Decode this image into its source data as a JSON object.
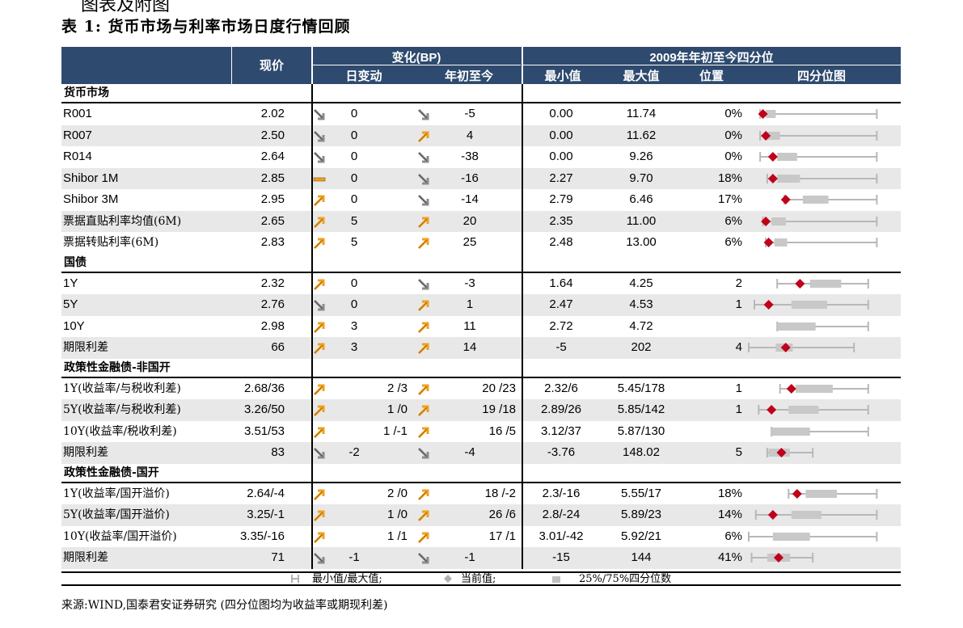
{
  "page": {
    "top_fragment": "图表及附图",
    "title": "表 1:  货币市场与利率市场日度行情回顾",
    "source": "来源:WIND,国泰君安证券研究      (四分位图均为收益率或期现利差)"
  },
  "header": {
    "price": "现价",
    "change_group": "变化(BP)",
    "change_day": "日变动",
    "change_ytd": "年初至今",
    "quartile_group": "2009年年初至今四分位",
    "min": "最小值",
    "max": "最大值",
    "position": "位置",
    "quartile_chart": "四分位图"
  },
  "colors": {
    "header_bg": "#2e4a6e",
    "row_alt": "#e8e8e8",
    "marker": "#c0001a",
    "box": "#c8c8c8",
    "whisker": "#b0b0b0",
    "arrow_up": "#f0a020",
    "arrow_down": "#8c8c8c",
    "arrow_flat": "#f0a020"
  },
  "sections": [
    {
      "title": "货币市场",
      "rows": [
        {
          "label": "R001",
          "price": "2.02",
          "dir1": "down",
          "d1": "0",
          "dir2": "down",
          "d2": "-5",
          "min": "0.00",
          "max": "11.74",
          "pos": "0%",
          "bp": {
            "wl": 0.08,
            "q1": 0.12,
            "q3": 0.19,
            "wh": 0.9,
            "cur": 0.1
          }
        },
        {
          "label": "R007",
          "price": "2.50",
          "dir1": "down",
          "d1": "0",
          "dir2": "up",
          "d2": "4",
          "min": "0.00",
          "max": "11.62",
          "pos": "0%",
          "bp": {
            "wl": 0.08,
            "q1": 0.13,
            "q3": 0.22,
            "wh": 0.9,
            "cur": 0.12
          }
        },
        {
          "label": "R014",
          "price": "2.64",
          "dir1": "down",
          "d1": "0",
          "dir2": "down",
          "d2": "-38",
          "min": "0.00",
          "max": "9.26",
          "pos": "0%",
          "bp": {
            "wl": 0.08,
            "q1": 0.2,
            "q3": 0.34,
            "wh": 0.9,
            "cur": 0.17
          }
        },
        {
          "label": "Shibor 1M",
          "price": "2.85",
          "dir1": "flat",
          "d1": "0",
          "dir2": "down",
          "d2": "-16",
          "min": "2.27",
          "max": "9.70",
          "pos": "18%",
          "bp": {
            "wl": 0.13,
            "q1": 0.2,
            "q3": 0.36,
            "wh": 0.9,
            "cur": 0.17
          }
        },
        {
          "label": "Shibor 3M",
          "price": "2.95",
          "dir1": "up",
          "d1": "0",
          "dir2": "down",
          "d2": "-14",
          "min": "2.79",
          "max": "6.46",
          "pos": "17%",
          "bp": {
            "wl": 0.25,
            "q1": 0.38,
            "q3": 0.56,
            "wh": 0.9,
            "cur": 0.26
          }
        },
        {
          "label": "票据直贴利率均值(6M)",
          "price": "2.65",
          "dir1": "up",
          "d1": "5",
          "dir2": "up",
          "d2": "20",
          "min": "2.35",
          "max": "11.00",
          "pos": "6%",
          "bp": {
            "wl": 0.1,
            "q1": 0.16,
            "q3": 0.26,
            "wh": 0.9,
            "cur": 0.12
          }
        },
        {
          "label": "票据转贴利率(6M)",
          "price": "2.83",
          "dir1": "up",
          "d1": "5",
          "dir2": "up",
          "d2": "25",
          "min": "2.48",
          "max": "13.00",
          "pos": "6%",
          "bp": {
            "wl": 0.12,
            "q1": 0.18,
            "q3": 0.27,
            "wh": 0.9,
            "cur": 0.14
          }
        }
      ]
    },
    {
      "title": "国债",
      "rows": [
        {
          "label": "1Y",
          "price": "2.32",
          "dir1": "up",
          "d1": "0",
          "dir2": "down",
          "d2": "-3",
          "min": "1.64",
          "max": "4.25",
          "pos": "2",
          "bp": {
            "wl": 0.2,
            "q1": 0.43,
            "q3": 0.65,
            "wh": 0.84,
            "cur": 0.36
          }
        },
        {
          "label": "5Y",
          "price": "2.76",
          "dir1": "down",
          "d1": "0",
          "dir2": "up",
          "d2": "1",
          "min": "2.47",
          "max": "4.53",
          "pos": "1",
          "bp": {
            "wl": 0.04,
            "q1": 0.3,
            "q3": 0.55,
            "wh": 0.84,
            "cur": 0.14
          }
        },
        {
          "label": "10Y",
          "price": "2.98",
          "dir1": "up",
          "d1": "3",
          "dir2": "up",
          "d2": "11",
          "min": "2.72",
          "max": "4.72",
          "pos": "",
          "bp": {
            "wl": 0.2,
            "q1": 0.2,
            "q3": 0.47,
            "wh": 0.84,
            "cur": null
          }
        },
        {
          "label": "期限利差",
          "price": "66",
          "dir1": "up",
          "d1": "3",
          "dir2": "up",
          "d2": "14",
          "min": "-5",
          "max": "202",
          "pos": "4",
          "bp": {
            "wl": 0.0,
            "q1": 0.19,
            "q3": 0.31,
            "wh": 0.74,
            "cur": 0.26
          }
        }
      ]
    },
    {
      "title": "政策性金融债-非国开",
      "rows": [
        {
          "label": "1Y(收益率/与税收利差)",
          "price": "2.68/36",
          "dir1": "up",
          "d1": "2 /3",
          "dir2": "up",
          "d2": "20 /23",
          "min": "2.32/6",
          "max": "5.45/178",
          "pos": "1",
          "bp": {
            "wl": 0.22,
            "q1": 0.33,
            "q3": 0.59,
            "wh": 0.84,
            "cur": 0.3
          }
        },
        {
          "label": "5Y(收益率/与税收利差)",
          "price": "3.26/50",
          "dir1": "up",
          "d1": "1 /0",
          "dir2": "up",
          "d2": "19 /18",
          "min": "2.89/26",
          "max": "5.85/142",
          "pos": "1",
          "bp": {
            "wl": 0.07,
            "q1": 0.28,
            "q3": 0.49,
            "wh": 0.84,
            "cur": 0.16
          }
        },
        {
          "label": "10Y(收益率/税收利差)",
          "price": "3.51/53",
          "dir1": "up",
          "d1": "1 /-1",
          "dir2": "up",
          "d2": "16 /5",
          "min": "3.12/37",
          "max": "5.87/130",
          "pos": "",
          "bp": {
            "wl": 0.16,
            "q1": 0.16,
            "q3": 0.43,
            "wh": 0.84,
            "cur": null
          }
        },
        {
          "label": "期限利差",
          "price": "83",
          "dir1": "down",
          "d1": "-2",
          "dir2": "down",
          "d2": "-4",
          "min": "-3.76",
          "max": "148.02",
          "pos": "5",
          "bp": {
            "wl": 0.13,
            "q1": 0.14,
            "q3": 0.29,
            "wh": 0.45,
            "cur": 0.23
          }
        }
      ]
    },
    {
      "title": "政策性金融债-国开",
      "rows": [
        {
          "label": "1Y(收益率/国开溢价)",
          "price": "2.64/-4",
          "dir1": "up",
          "d1": "2 /0",
          "dir2": "up",
          "d2": "18 /-2",
          "min": "2.3/-16",
          "max": "5.55/17",
          "pos": "18%",
          "bp": {
            "wl": 0.28,
            "q1": 0.4,
            "q3": 0.62,
            "wh": 0.9,
            "cur": 0.34
          }
        },
        {
          "label": "5Y(收益率/国开溢价)",
          "price": "3.25/-1",
          "dir1": "up",
          "d1": "1 /0",
          "dir2": "up",
          "d2": "26 /6",
          "min": "2.8/-24",
          "max": "5.89/23",
          "pos": "14%",
          "bp": {
            "wl": 0.05,
            "q1": 0.3,
            "q3": 0.51,
            "wh": 0.9,
            "cur": 0.17
          }
        },
        {
          "label": "10Y(收益率/国开溢价)",
          "price": "3.35/-16",
          "dir1": "up",
          "d1": "1 /1",
          "dir2": "up",
          "d2": "17 /1",
          "min": "3.01/-42",
          "max": "5.92/21",
          "pos": "6%",
          "bp": {
            "wl": 0.0,
            "q1": 0.17,
            "q3": 0.43,
            "wh": 0.9,
            "cur": null
          }
        },
        {
          "label": "期限利差",
          "price": "71",
          "dir1": "down",
          "d1": "-1",
          "dir2": "down",
          "d2": "-1",
          "min": "-15",
          "max": "144",
          "pos": "41%",
          "bp": {
            "wl": 0.02,
            "q1": 0.13,
            "q3": 0.29,
            "wh": 0.45,
            "cur": 0.21
          }
        }
      ]
    }
  ],
  "legend": {
    "minmax": "最小值/最大值;",
    "current": "当前值;",
    "quartile": "25%/75%四分位数"
  }
}
